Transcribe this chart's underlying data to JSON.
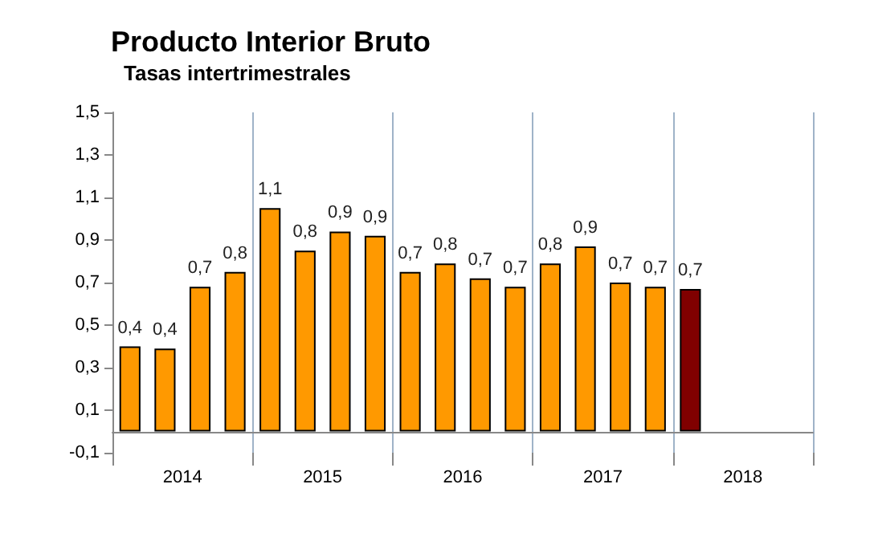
{
  "chart_data": {
    "type": "bar",
    "title": "Producto Interior Bruto",
    "subtitle": "Tasas intertrimestrales",
    "categories": [
      null,
      null,
      null,
      null,
      null,
      null,
      null,
      null,
      null,
      null,
      null,
      null,
      null,
      null,
      null,
      null,
      null,
      null,
      null,
      null
    ],
    "values": [
      0.4,
      0.39,
      0.68,
      0.75,
      1.05,
      0.85,
      0.94,
      0.92,
      0.75,
      0.79,
      0.72,
      0.68,
      0.79,
      0.87,
      0.7,
      0.68,
      0.67,
      null,
      null,
      null
    ],
    "value_labels": [
      "0,4",
      "0,4",
      "0,7",
      "0,8",
      "1,1",
      "0,8",
      "0,9",
      "0,9",
      "0,7",
      "0,8",
      "0,7",
      "0,7",
      "0,8",
      "0,9",
      "0,7",
      "0,7",
      "0,7",
      null,
      null,
      null
    ],
    "colors": [
      "#ff9900",
      "#ff9900",
      "#ff9900",
      "#ff9900",
      "#ff9900",
      "#ff9900",
      "#ff9900",
      "#ff9900",
      "#ff9900",
      "#ff9900",
      "#ff9900",
      "#ff9900",
      "#ff9900",
      "#ff9900",
      "#ff9900",
      "#ff9900",
      "#800000",
      "#ff9900",
      "#ff9900",
      "#ff9900"
    ],
    "annotations": [
      "2014",
      "2015",
      "2016",
      "2017",
      "2018"
    ],
    "ylim": [
      -0.1,
      1.5
    ],
    "yticks": [
      {
        "value": -0.1,
        "label": "-0,1"
      },
      {
        "value": 0.1,
        "label": "0,1"
      },
      {
        "value": 0.3,
        "label": "0,3"
      },
      {
        "value": 0.5,
        "label": "0,5"
      },
      {
        "value": 0.7,
        "label": "0,7"
      },
      {
        "value": 0.9,
        "label": "0,9"
      },
      {
        "value": 1.1,
        "label": "1,1"
      },
      {
        "value": 1.3,
        "label": "1,3"
      },
      {
        "value": 1.5,
        "label": "1,5"
      }
    ],
    "grid": "x"
  }
}
